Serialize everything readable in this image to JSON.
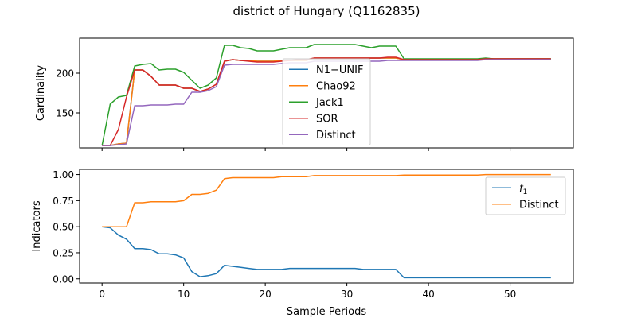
{
  "figure": {
    "title": "district of Hungary (Q1162835)",
    "xlabel": "Sample Periods"
  },
  "colors": {
    "blue": "#1f77b4",
    "orange": "#ff7f0e",
    "green": "#2ca02c",
    "red": "#d62728",
    "purple": "#9467bd"
  },
  "chart_data": [
    {
      "type": "line",
      "ylabel": "Cardinality",
      "xlim": [
        -2.75,
        57.75
      ],
      "ylim": [
        106,
        244
      ],
      "xticks": [
        0,
        10,
        20,
        30,
        40,
        50
      ],
      "yticks": [
        150,
        200
      ],
      "legend_placement": "center",
      "grid": false,
      "x": [
        0,
        1,
        2,
        3,
        4,
        5,
        6,
        7,
        8,
        9,
        10,
        11,
        12,
        13,
        14,
        15,
        16,
        17,
        18,
        19,
        20,
        21,
        22,
        23,
        24,
        25,
        26,
        27,
        28,
        29,
        30,
        31,
        32,
        33,
        34,
        35,
        36,
        37,
        38,
        39,
        40,
        41,
        42,
        43,
        44,
        45,
        46,
        47,
        48,
        49,
        50,
        51,
        52,
        53,
        54,
        55
      ],
      "series": [
        {
          "name": "N1−UNIF",
          "color": "blue",
          "values": [
            109,
            109,
            111,
            112,
            204,
            204,
            196,
            185,
            185,
            185,
            181,
            181,
            177,
            180,
            186,
            215,
            217,
            216,
            216,
            215,
            215,
            215,
            216,
            216,
            216,
            216,
            219,
            219,
            219,
            219,
            219,
            219,
            219,
            219,
            219,
            219,
            219,
            217,
            217,
            217,
            217,
            217,
            217,
            217,
            217,
            217,
            217,
            218,
            218,
            218,
            218,
            218,
            218,
            218,
            218,
            218
          ]
        },
        {
          "name": "Chao92",
          "color": "orange",
          "values": [
            109,
            109,
            111,
            112,
            204,
            204,
            196,
            185,
            185,
            185,
            181,
            181,
            177,
            180,
            186,
            215,
            217,
            216,
            216,
            215,
            215,
            215,
            216,
            216,
            216,
            216,
            219,
            219,
            219,
            219,
            219,
            219,
            219,
            219,
            219,
            219,
            219,
            217,
            217,
            217,
            217,
            217,
            217,
            217,
            217,
            217,
            217,
            218,
            218,
            218,
            218,
            218,
            218,
            218,
            218,
            218
          ]
        },
        {
          "name": "Jack1",
          "color": "green",
          "values": [
            109,
            161,
            170,
            172,
            209,
            211,
            212,
            204,
            205,
            205,
            201,
            191,
            181,
            185,
            194,
            235,
            235,
            232,
            231,
            228,
            228,
            228,
            230,
            232,
            232,
            232,
            236,
            236,
            236,
            236,
            236,
            236,
            234,
            232,
            234,
            234,
            234,
            218,
            218,
            218,
            218,
            218,
            218,
            218,
            218,
            218,
            218,
            219,
            218,
            218,
            218,
            218,
            218,
            218,
            218,
            218
          ]
        },
        {
          "name": "SOR",
          "color": "red",
          "values": [
            109,
            109,
            129,
            170,
            204,
            204,
            196,
            185,
            185,
            185,
            181,
            181,
            177,
            180,
            186,
            215,
            217,
            216,
            215,
            214,
            214,
            214,
            215,
            216,
            217,
            217,
            219,
            219,
            219,
            219,
            219,
            219,
            219,
            219,
            219,
            220,
            220,
            217,
            217,
            217,
            217,
            217,
            217,
            217,
            217,
            217,
            217,
            218,
            218,
            218,
            218,
            218,
            218,
            218,
            218,
            218
          ]
        },
        {
          "name": "Distinct",
          "color": "purple",
          "values": [
            109,
            109,
            110,
            111,
            159,
            159,
            160,
            160,
            160,
            161,
            161,
            176,
            176,
            178,
            183,
            210,
            211,
            211,
            211,
            211,
            211,
            211,
            212,
            213,
            213,
            213,
            215,
            215,
            215,
            215,
            215,
            215,
            215,
            215,
            215,
            216,
            216,
            216,
            216,
            216,
            216,
            216,
            216,
            216,
            216,
            216,
            216,
            217,
            217,
            217,
            217,
            217,
            217,
            217,
            217,
            217
          ]
        }
      ]
    },
    {
      "type": "line",
      "ylabel": "Indicators",
      "xlim": [
        -2.75,
        57.75
      ],
      "ylim": [
        -0.04,
        1.05
      ],
      "xticks": [
        0,
        10,
        20,
        30,
        40,
        50
      ],
      "yticks": [
        0.0,
        0.25,
        0.5,
        0.75,
        1.0
      ],
      "ytick_labels": [
        "0.00",
        "0.25",
        "0.50",
        "0.75",
        "1.00"
      ],
      "legend_placement": "upper right",
      "grid": false,
      "x": [
        0,
        1,
        2,
        3,
        4,
        5,
        6,
        7,
        8,
        9,
        10,
        11,
        12,
        13,
        14,
        15,
        16,
        17,
        18,
        19,
        20,
        21,
        22,
        23,
        24,
        25,
        26,
        27,
        28,
        29,
        30,
        31,
        32,
        33,
        34,
        35,
        36,
        37,
        38,
        39,
        40,
        41,
        42,
        43,
        44,
        45,
        46,
        47,
        48,
        49,
        50,
        51,
        52,
        53,
        54,
        55
      ],
      "series": [
        {
          "name": "f1",
          "label_main": "f",
          "label_sub": "1",
          "color": "blue",
          "values": [
            0.5,
            0.49,
            0.42,
            0.38,
            0.29,
            0.29,
            0.28,
            0.24,
            0.24,
            0.23,
            0.2,
            0.07,
            0.02,
            0.03,
            0.05,
            0.13,
            0.12,
            0.11,
            0.1,
            0.09,
            0.09,
            0.09,
            0.09,
            0.1,
            0.1,
            0.1,
            0.1,
            0.1,
            0.1,
            0.1,
            0.1,
            0.1,
            0.09,
            0.09,
            0.09,
            0.09,
            0.09,
            0.01,
            0.01,
            0.01,
            0.01,
            0.01,
            0.01,
            0.01,
            0.01,
            0.01,
            0.01,
            0.01,
            0.01,
            0.01,
            0.01,
            0.01,
            0.01,
            0.01,
            0.01,
            0.01
          ]
        },
        {
          "name": "Distinct",
          "color": "orange",
          "values": [
            0.5,
            0.5,
            0.5,
            0.5,
            0.73,
            0.73,
            0.74,
            0.74,
            0.74,
            0.74,
            0.75,
            0.81,
            0.81,
            0.82,
            0.85,
            0.96,
            0.97,
            0.97,
            0.97,
            0.97,
            0.97,
            0.97,
            0.98,
            0.98,
            0.98,
            0.98,
            0.99,
            0.99,
            0.99,
            0.99,
            0.99,
            0.99,
            0.99,
            0.99,
            0.99,
            0.99,
            0.99,
            0.995,
            0.995,
            0.995,
            0.995,
            0.995,
            0.995,
            0.995,
            0.995,
            0.995,
            0.995,
            1.0,
            1.0,
            1.0,
            1.0,
            1.0,
            1.0,
            1.0,
            1.0,
            1.0
          ]
        }
      ]
    }
  ]
}
